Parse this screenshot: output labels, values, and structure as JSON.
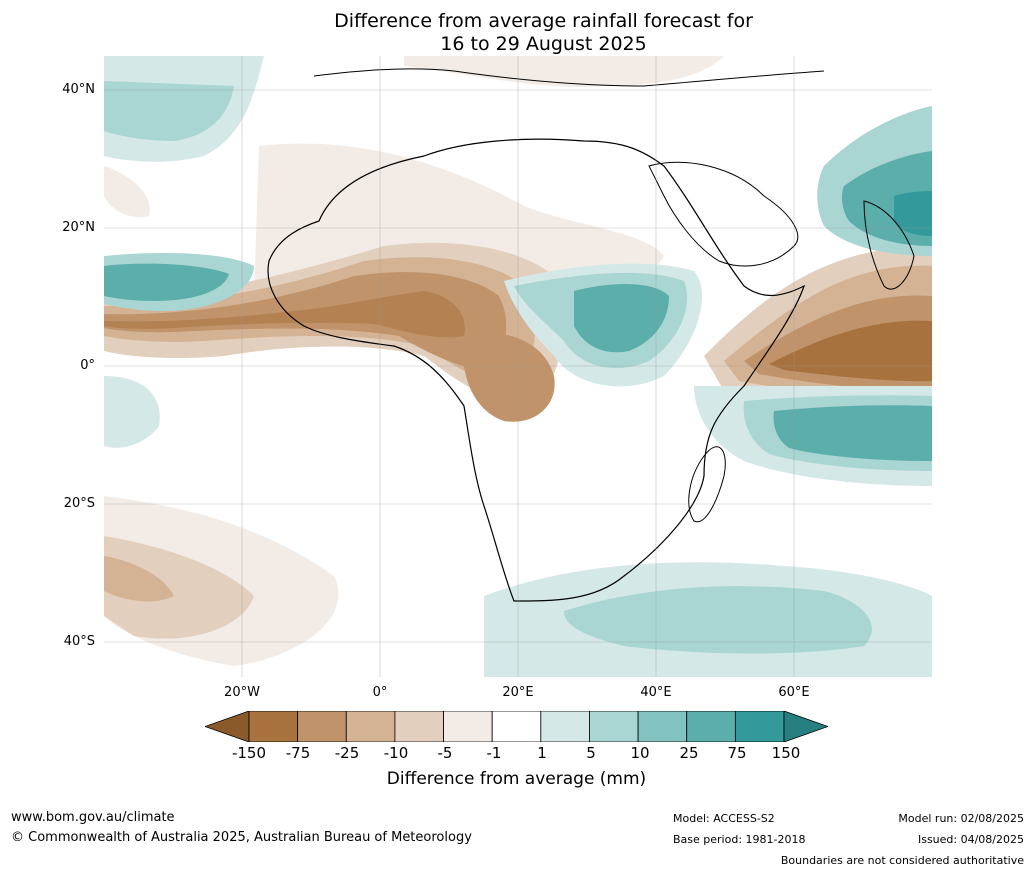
{
  "title": {
    "line1": "Difference from average rainfall forecast for",
    "line2": "16 to 29 August 2025"
  },
  "map": {
    "lat_labels": [
      "40°N",
      "20°N",
      "0°",
      "20°S",
      "40°S"
    ],
    "lon_labels": [
      "20°W",
      "0°",
      "20°E",
      "40°E",
      "60°E"
    ],
    "extent": {
      "lon_min": -40,
      "lon_max": 80,
      "lat_min": -45,
      "lat_max": 45
    },
    "lat_gridlines": [
      40,
      20,
      0,
      -20,
      -40
    ],
    "lon_gridlines": [
      -20,
      0,
      20,
      40,
      60
    ],
    "grid": true
  },
  "colorbar": {
    "ticks": [
      "-150",
      "-75",
      "-25",
      "-10",
      "-5",
      "-1",
      "1",
      "5",
      "10",
      "25",
      "75",
      "150"
    ],
    "colors": [
      "#8b5a2b",
      "#a8723e",
      "#c0936a",
      "#d4b394",
      "#e3cfbd",
      "#f3ece6",
      "#ffffff",
      "#d3e8e7",
      "#a9d5d3",
      "#82c2c0",
      "#5caeab",
      "#33999a",
      "#277f7f"
    ],
    "title": "Difference from average (mm)"
  },
  "footer": {
    "website": "www.bom.gov.au/climate",
    "copyright": "© Commonwealth of Australia 2025, Australian Bureau of Meteorology",
    "model": "Model: ACCESS-S2",
    "base_period": "Base period: 1981-2018",
    "model_run": "Model run: 02/08/2025",
    "issued": "Issued: 04/08/2025",
    "disclaimer": "Boundaries are not considered authoritative"
  }
}
